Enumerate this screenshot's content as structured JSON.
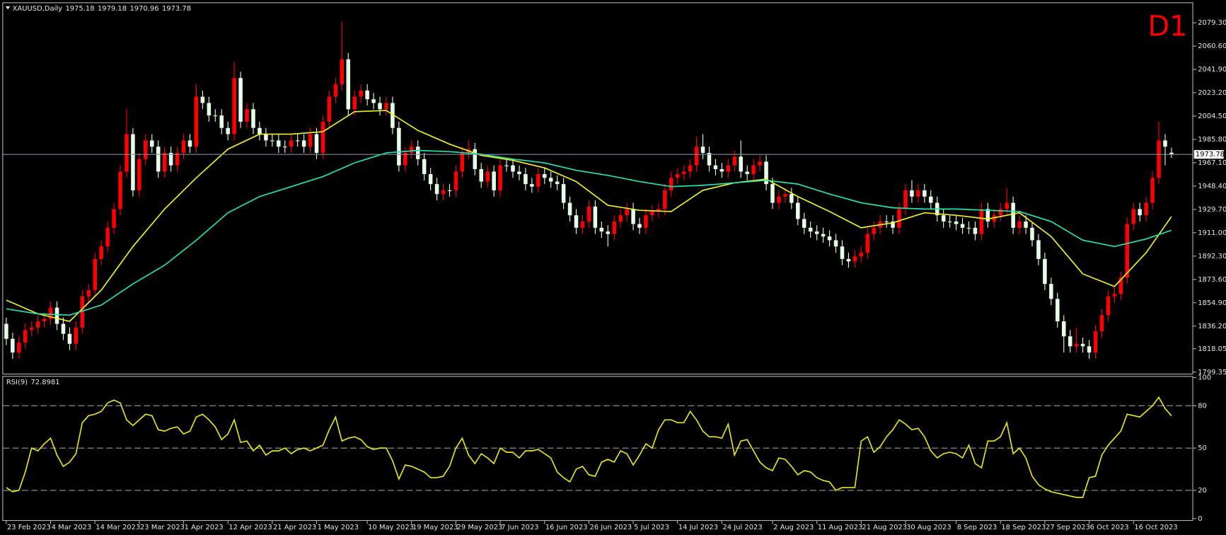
{
  "chart_data": [
    {
      "type": "candlestick",
      "title": "XAUUSD,Daily",
      "label": "D1",
      "label_color": "#ff0000",
      "up_color": "#ff0000",
      "down_color": "#e6ffe6",
      "price_line_color": "#7d90a6",
      "xlim": [
        -0.5,
        187.3
      ],
      "xticks": [
        {
          "value": 0,
          "label": "23 Feb 2023"
        },
        {
          "value": 7,
          "label": "4 Mar 2023"
        },
        {
          "value": 14,
          "label": "14 Mar 2023"
        },
        {
          "value": 21,
          "label": "23 Mar 2023"
        },
        {
          "value": 28,
          "label": "1 Apr 2023"
        },
        {
          "value": 35,
          "label": "12 Apr 2023"
        },
        {
          "value": 42,
          "label": "21 Apr 2023"
        },
        {
          "value": 49,
          "label": "1 May 2023"
        },
        {
          "value": 57,
          "label": "10 May 2023"
        },
        {
          "value": 64,
          "label": "19 May 2023"
        },
        {
          "value": 71,
          "label": "29 May 2023"
        },
        {
          "value": 78,
          "label": "7 Jun 2023"
        },
        {
          "value": 85,
          "label": "16 Jun 2023"
        },
        {
          "value": 92,
          "label": "26 Jun 2023"
        },
        {
          "value": 99,
          "label": "5 Jul 2023"
        },
        {
          "value": 106,
          "label": "14 Jul 2023"
        },
        {
          "value": 113,
          "label": "24 Jul 2023"
        },
        {
          "value": 121,
          "label": "2 Aug 2023"
        },
        {
          "value": 128,
          "label": "11 Aug 2023"
        },
        {
          "value": 135,
          "label": "21 Aug 2023"
        },
        {
          "value": 142,
          "label": "30 Aug 2023"
        },
        {
          "value": 150,
          "label": "8 Sep 2023"
        },
        {
          "value": 157,
          "label": "18 Sep 2023"
        },
        {
          "value": 164,
          "label": "27 Sep 2023"
        },
        {
          "value": 171,
          "label": "6 Oct 2023"
        },
        {
          "value": 178,
          "label": "16 Oct 2023"
        }
      ],
      "ylim": [
        1798.1,
        2095
      ],
      "yticks": [
        {
          "value": 2079.3,
          "label": "2079.30"
        },
        {
          "value": 2060.6,
          "label": "2060.60"
        },
        {
          "value": 2041.9,
          "label": "2041.90"
        },
        {
          "value": 2023.2,
          "label": "2023.20"
        },
        {
          "value": 2004.5,
          "label": "2004.50"
        },
        {
          "value": 1985.8,
          "label": "1985.80"
        },
        {
          "value": 1967.1,
          "label": "1967.10"
        },
        {
          "value": 1948.4,
          "label": "1948.40"
        },
        {
          "value": 1929.7,
          "label": "1929.70"
        },
        {
          "value": 1911,
          "label": "1911.00"
        },
        {
          "value": 1892.3,
          "label": "1892.30"
        },
        {
          "value": 1873.6,
          "label": "1873.60"
        },
        {
          "value": 1854.9,
          "label": "1854.90"
        },
        {
          "value": 1836.2,
          "label": "1836.20"
        },
        1818.05,
        1799.35
      ],
      "open": [
        1838,
        1826,
        1815,
        1823,
        1833,
        1835,
        1840,
        1842,
        1851,
        1838,
        1830,
        1822,
        1835,
        1860,
        1865,
        1890,
        1900,
        1915,
        1930,
        1960,
        1990,
        1945,
        1970,
        1985,
        1980,
        1960,
        1975,
        1965,
        1975,
        1985,
        1980,
        2020,
        2015,
        2005,
        2005,
        1995,
        1990,
        2035,
        2000,
        2010,
        1995,
        1990,
        1985,
        1985,
        1980,
        1980,
        1985,
        1985,
        1980,
        1990,
        1975,
        2000,
        2020,
        2030,
        2050,
        2010,
        2020,
        2025,
        2018,
        2015,
        2010,
        2015,
        1995,
        1965,
        1975,
        1980,
        1970,
        1958,
        1950,
        1942,
        1945,
        1945,
        1960,
        1975,
        1978,
        1962,
        1952,
        1960,
        1945,
        1965,
        1965,
        1960,
        1958,
        1950,
        1948,
        1958,
        1955,
        1952,
        1950,
        1935,
        1925,
        1915,
        1920,
        1932,
        1915,
        1912,
        1910,
        1920,
        1925,
        1930,
        1918,
        1915,
        1925,
        1928,
        1930,
        1945,
        1955,
        1958,
        1960,
        1965,
        1980,
        1975,
        1965,
        1962,
        1960,
        1965,
        1972,
        1960,
        1958,
        1965,
        1968,
        1950,
        1935,
        1940,
        1942,
        1935,
        1922,
        1915,
        1912,
        1910,
        1908,
        1905,
        1900,
        1890,
        1888,
        1892,
        1895,
        1910,
        1915,
        1920,
        1920,
        1915,
        1930,
        1945,
        1940,
        1945,
        1940,
        1935,
        1925,
        1920,
        1920,
        1918,
        1915,
        1915,
        1910,
        1930,
        1920,
        1925,
        1930,
        1935,
        1915,
        1920,
        1915,
        1905,
        1890,
        1870,
        1858,
        1840,
        1828,
        1820,
        1822,
        1820,
        1815,
        1832,
        1845,
        1860,
        1862,
        1875,
        1918,
        1930,
        1925,
        1935,
        1955,
        1985,
        1975.18
      ],
      "high": [
        1843,
        1831,
        1828,
        1838,
        1840,
        1845,
        1847,
        1856,
        1856,
        1843,
        1835,
        1840,
        1865,
        1870,
        1895,
        1905,
        1920,
        1935,
        1965,
        2010,
        1995,
        1975,
        1990,
        1990,
        1985,
        1980,
        1980,
        1980,
        1990,
        1990,
        2030,
        2025,
        2020,
        2010,
        2010,
        2000,
        2048,
        2040,
        2015,
        2015,
        2000,
        1995,
        1990,
        1990,
        1985,
        1990,
        1990,
        1990,
        1995,
        1995,
        2005,
        2025,
        2035,
        2080,
        2055,
        2025,
        2030,
        2030,
        2023,
        2020,
        2020,
        2020,
        2000,
        1980,
        1985,
        1985,
        1975,
        1963,
        1955,
        1950,
        1950,
        1965,
        1980,
        1985,
        1983,
        1967,
        1965,
        1965,
        1970,
        1970,
        1970,
        1965,
        1963,
        1955,
        1963,
        1963,
        1960,
        1957,
        1955,
        1940,
        1930,
        1925,
        1937,
        1937,
        1920,
        1917,
        1925,
        1930,
        1935,
        1935,
        1923,
        1930,
        1933,
        1935,
        1950,
        1960,
        1963,
        1965,
        1970,
        1988,
        1990,
        1980,
        1970,
        1967,
        1970,
        1977,
        1985,
        1965,
        1970,
        1973,
        1973,
        1955,
        1945,
        1947,
        1947,
        1940,
        1927,
        1920,
        1917,
        1915,
        1913,
        1910,
        1905,
        1895,
        1897,
        1900,
        1915,
        1920,
        1925,
        1925,
        1925,
        1935,
        1950,
        1953,
        1950,
        1950,
        1945,
        1940,
        1930,
        1925,
        1925,
        1923,
        1920,
        1920,
        1935,
        1935,
        1930,
        1935,
        1947,
        1940,
        1925,
        1925,
        1920,
        1910,
        1895,
        1875,
        1863,
        1845,
        1833,
        1835,
        1827,
        1825,
        1837,
        1850,
        1865,
        1868,
        1880,
        1923,
        1935,
        1935,
        1940,
        1960,
        2000,
        1990,
        1979.18
      ],
      "low": [
        1821,
        1810,
        1810,
        1818,
        1828,
        1830,
        1835,
        1837,
        1833,
        1825,
        1817,
        1817,
        1830,
        1855,
        1860,
        1885,
        1895,
        1910,
        1925,
        1955,
        1940,
        1940,
        1965,
        1975,
        1955,
        1955,
        1960,
        1960,
        1970,
        1975,
        1975,
        2010,
        2000,
        2000,
        1990,
        1985,
        1985,
        1995,
        1995,
        1990,
        1985,
        1980,
        1980,
        1975,
        1975,
        1975,
        1980,
        1975,
        1975,
        1970,
        1970,
        1995,
        2015,
        2025,
        2005,
        2005,
        2015,
        2013,
        2010,
        2005,
        2005,
        1990,
        1960,
        1960,
        1970,
        1965,
        1953,
        1945,
        1937,
        1937,
        1940,
        1940,
        1955,
        1970,
        1957,
        1947,
        1947,
        1940,
        1940,
        1960,
        1955,
        1953,
        1945,
        1943,
        1943,
        1950,
        1947,
        1945,
        1930,
        1920,
        1910,
        1910,
        1915,
        1910,
        1907,
        1900,
        1905,
        1915,
        1920,
        1913,
        1910,
        1910,
        1920,
        1923,
        1925,
        1940,
        1950,
        1953,
        1955,
        1960,
        1970,
        1960,
        1957,
        1955,
        1955,
        1960,
        1955,
        1953,
        1953,
        1960,
        1945,
        1930,
        1930,
        1935,
        1930,
        1917,
        1910,
        1907,
        1905,
        1903,
        1900,
        1895,
        1885,
        1883,
        1883,
        1887,
        1890,
        1905,
        1910,
        1915,
        1910,
        1910,
        1925,
        1935,
        1935,
        1935,
        1930,
        1920,
        1915,
        1915,
        1913,
        1910,
        1910,
        1905,
        1905,
        1915,
        1915,
        1920,
        1925,
        1910,
        1910,
        1910,
        1900,
        1885,
        1865,
        1853,
        1835,
        1815,
        1815,
        1815,
        1815,
        1810,
        1810,
        1827,
        1840,
        1855,
        1857,
        1870,
        1913,
        1920,
        1920,
        1930,
        1950,
        1965,
        1970.96
      ],
      "close": [
        1826,
        1815,
        1823,
        1833,
        1835,
        1840,
        1842,
        1851,
        1838,
        1830,
        1822,
        1835,
        1860,
        1865,
        1890,
        1900,
        1915,
        1930,
        1960,
        1990,
        1945,
        1970,
        1985,
        1980,
        1960,
        1975,
        1965,
        1975,
        1985,
        1980,
        2020,
        2015,
        2005,
        2005,
        1995,
        1990,
        2035,
        2000,
        2010,
        1995,
        1990,
        1985,
        1985,
        1980,
        1980,
        1985,
        1985,
        1980,
        1990,
        1975,
        2000,
        2020,
        2030,
        2050,
        2010,
        2020,
        2025,
        2018,
        2015,
        2010,
        2015,
        1995,
        1965,
        1975,
        1980,
        1970,
        1958,
        1950,
        1942,
        1945,
        1945,
        1960,
        1975,
        1978,
        1962,
        1952,
        1960,
        1945,
        1965,
        1965,
        1960,
        1958,
        1950,
        1948,
        1958,
        1955,
        1952,
        1950,
        1935,
        1925,
        1915,
        1920,
        1932,
        1915,
        1912,
        1910,
        1920,
        1925,
        1930,
        1918,
        1915,
        1925,
        1928,
        1930,
        1945,
        1955,
        1958,
        1960,
        1965,
        1980,
        1975,
        1965,
        1962,
        1960,
        1965,
        1972,
        1960,
        1958,
        1965,
        1968,
        1950,
        1935,
        1940,
        1942,
        1935,
        1922,
        1915,
        1912,
        1910,
        1908,
        1905,
        1900,
        1890,
        1888,
        1892,
        1895,
        1910,
        1915,
        1920,
        1920,
        1915,
        1930,
        1945,
        1940,
        1945,
        1940,
        1935,
        1925,
        1920,
        1920,
        1918,
        1915,
        1915,
        1910,
        1930,
        1920,
        1925,
        1930,
        1935,
        1915,
        1920,
        1915,
        1905,
        1890,
        1870,
        1858,
        1840,
        1828,
        1820,
        1822,
        1820,
        1815,
        1832,
        1845,
        1860,
        1862,
        1875,
        1918,
        1930,
        1925,
        1935,
        1955,
        1985,
        1980,
        1973.78
      ],
      "series": [
        {
          "color": "#f2f21e",
          "x": [
            0,
            5,
            10,
            15,
            20,
            25,
            30,
            35,
            40,
            45,
            50,
            55,
            60,
            65,
            70,
            75,
            80,
            85,
            90,
            95,
            100,
            105,
            110,
            115,
            120,
            125,
            130,
            135,
            140,
            145,
            150,
            155,
            160,
            165,
            170,
            175,
            180,
            184
          ],
          "values": [
            1857,
            1846,
            1840,
            1865,
            1900,
            1930,
            1955,
            1978,
            1990,
            1990,
            1992,
            2008,
            2009,
            1993,
            1982,
            1973,
            1969,
            1963,
            1952,
            1933,
            1929,
            1928,
            1945,
            1951,
            1954,
            1940,
            1928,
            1915,
            1919,
            1927,
            1925,
            1922,
            1927,
            1908,
            1878,
            1868,
            1895,
            1924
          ]
        },
        {
          "color": "#1ee6b4",
          "x": [
            0,
            5,
            10,
            15,
            20,
            25,
            30,
            35,
            40,
            45,
            50,
            55,
            60,
            65,
            70,
            75,
            80,
            85,
            90,
            95,
            100,
            105,
            110,
            115,
            120,
            125,
            130,
            135,
            140,
            145,
            150,
            155,
            160,
            165,
            170,
            175,
            180,
            184
          ],
          "values": [
            1850,
            1846,
            1845,
            1853,
            1870,
            1885,
            1905,
            1927,
            1940,
            1948,
            1956,
            1967,
            1975,
            1977,
            1976,
            1974,
            1970,
            1967,
            1961,
            1957,
            1952,
            1948,
            1949,
            1951,
            1953,
            1950,
            1942,
            1935,
            1931,
            1930,
            1930,
            1929,
            1928,
            1920,
            1905,
            1900,
            1906,
            1913
          ]
        }
      ]
    },
    {
      "type": "line",
      "title": "RSI(9)",
      "color": "#e6e619",
      "grid": "dashed",
      "ylim": [
        0,
        100
      ],
      "yticks": [
        0,
        20,
        50,
        80,
        100
      ],
      "values": [
        22,
        19,
        20,
        33,
        50,
        48,
        53,
        57,
        45,
        37,
        40,
        46,
        68,
        73,
        74,
        76,
        82,
        84,
        82,
        70,
        66,
        70,
        74,
        73,
        63,
        62,
        64,
        65,
        60,
        62,
        72,
        74,
        70,
        65,
        56,
        60,
        70,
        54,
        55,
        48,
        52,
        45,
        48,
        48,
        50,
        46,
        49,
        50,
        48,
        50,
        52,
        63,
        72,
        55,
        57,
        58,
        56,
        51,
        49,
        50,
        50,
        41,
        28,
        38,
        37,
        35,
        33,
        29,
        29,
        30,
        37,
        50,
        57,
        45,
        39,
        46,
        43,
        39,
        50,
        47,
        47,
        43,
        48,
        48,
        49,
        46,
        43,
        33,
        29,
        26,
        35,
        37,
        31,
        30,
        40,
        42,
        40,
        48,
        46,
        38,
        45,
        53,
        50,
        63,
        70,
        70,
        68,
        68,
        76,
        70,
        62,
        58,
        58,
        57,
        67,
        45,
        55,
        56,
        48,
        40,
        36,
        34,
        43,
        42,
        37,
        31,
        34,
        33,
        29,
        27,
        26,
        20,
        22,
        22,
        22,
        55,
        58,
        47,
        51,
        58,
        63,
        70,
        67,
        63,
        64,
        58,
        48,
        43,
        46,
        47,
        46,
        43,
        52,
        39,
        36,
        55,
        55,
        58,
        68,
        46,
        50,
        43,
        30,
        24,
        21,
        19,
        18,
        17,
        16,
        15,
        15,
        29,
        30,
        45,
        52,
        57,
        62,
        74,
        73,
        72,
        76,
        80,
        86,
        78,
        72.8981
      ]
    }
  ]
}
